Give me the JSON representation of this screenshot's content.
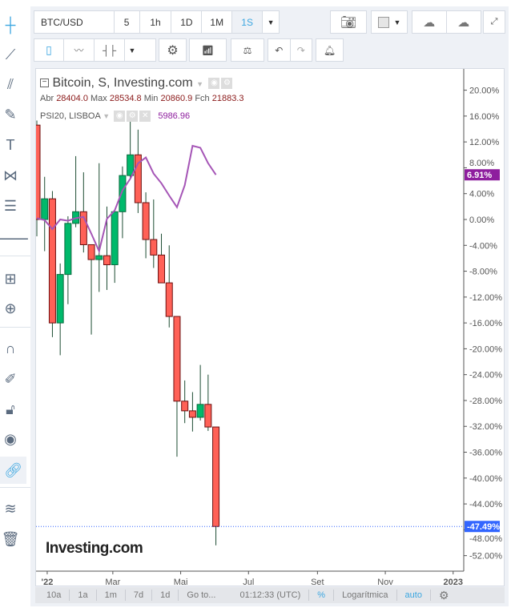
{
  "toolbar": {
    "symbol": "BTC/USD",
    "intervals": [
      "5",
      "1h",
      "1D",
      "1M",
      "1S"
    ],
    "active_interval": "1S"
  },
  "legend": {
    "title": "Bitcoin, S, Investing.com",
    "open_label": "Abr",
    "open": "28404.0",
    "high_label": "Max",
    "high": "28534.8",
    "low_label": "Min",
    "low": "20860.9",
    "close_label": "Fch",
    "close": "21883.3",
    "compare_name": "PSI20, LISBOA",
    "compare_value": "5986.96"
  },
  "logo": "Investing.com",
  "bottom_bar": {
    "ranges": [
      "10a",
      "1a",
      "1m",
      "7d",
      "1d"
    ],
    "goto": "Go to...",
    "time": "01:12:33 (UTC)",
    "percent": "%",
    "log": "Logarítmica",
    "auto": "auto"
  },
  "colors": {
    "up": "#00b96b",
    "down": "#ff6157",
    "compare": "#a555b6",
    "accent": "#3ba6e0",
    "last_price": "#3366ff"
  },
  "chart_data": {
    "type": "candlestick",
    "y_unit": "%",
    "ylim": [
      -54,
      22
    ],
    "y_ticks": [
      20,
      16,
      12,
      8,
      4,
      0,
      -4,
      -8,
      -12,
      -16,
      -20,
      -24,
      -28,
      -32,
      -36,
      -40,
      -44,
      -48,
      -52
    ],
    "x_ticks": [
      {
        "label": "'22",
        "date": "2022-01-01"
      },
      {
        "label": "Mar",
        "date": "2022-03-01"
      },
      {
        "label": "Mai",
        "date": "2022-05-01"
      },
      {
        "label": "Jul",
        "date": "2022-07-01"
      },
      {
        "label": "Set",
        "date": "2022-09-01"
      },
      {
        "label": "Nov",
        "date": "2022-11-01"
      },
      {
        "label": "2023",
        "date": "2023-01-01"
      }
    ],
    "first_week": "2021-12-27",
    "series": [
      {
        "name": "Bitcoin",
        "type": "candlestick",
        "ohlc": [
          [
            14.6,
            15.3,
            -2.6,
            0
          ],
          [
            0,
            6.6,
            -4.9,
            3.2
          ],
          [
            3.2,
            4.4,
            -18.2,
            -16.0
          ],
          [
            -16.0,
            -6.8,
            -21.0,
            -8.5
          ],
          [
            -8.5,
            0.5,
            -13.1,
            -0.6
          ],
          [
            -0.6,
            9.8,
            -1.2,
            1.2
          ],
          [
            1.2,
            7.3,
            -5.1,
            -3.9
          ],
          [
            -3.9,
            -3.9,
            -17.8,
            -6.2
          ],
          [
            -6.2,
            8.7,
            -11.2,
            -5.6
          ],
          [
            -5.6,
            2.0,
            -10.9,
            -7.0
          ],
          [
            -7.0,
            1.2,
            -9.8,
            1.2
          ],
          [
            1.2,
            8.2,
            -2.9,
            6.8
          ],
          [
            6.8,
            15.7,
            6.3,
            10.0
          ],
          [
            10.0,
            13.9,
            1.0,
            2.6
          ],
          [
            2.6,
            4.2,
            -6.0,
            -3.1
          ],
          [
            -3.1,
            3.1,
            -7.5,
            -5.5
          ],
          [
            -5.5,
            -2.2,
            -9.8,
            -9.8
          ],
          [
            -9.8,
            -4.0,
            -16.7,
            -15.0
          ],
          [
            -15.0,
            -15.0,
            -36.7,
            -28.1
          ],
          [
            -28.1,
            -24.9,
            -31.5,
            -29.6
          ],
          [
            -29.6,
            -26.7,
            -32.8,
            -30.6
          ],
          [
            -30.6,
            -22.5,
            -31.1,
            -28.6
          ],
          [
            -28.6,
            -24.0,
            -32.7,
            -32.1
          ],
          [
            -32.1,
            -32.1,
            -50.4,
            -47.49
          ]
        ]
      },
      {
        "name": "PSI20, LISBOA",
        "type": "line",
        "values": [
          0.2,
          -0.1,
          -1.5,
          0,
          -0.2,
          0.2,
          0.4,
          -2.2,
          -4.9,
          0.1,
          1.4,
          4.5,
          6.3,
          8.7,
          9.6,
          7.1,
          5.6,
          3.7,
          1.9,
          5.3,
          11.4,
          11.1,
          8.7,
          6.91
        ]
      }
    ],
    "last_labels": {
      "compare": "6.91%",
      "main": "-47.49%"
    }
  }
}
